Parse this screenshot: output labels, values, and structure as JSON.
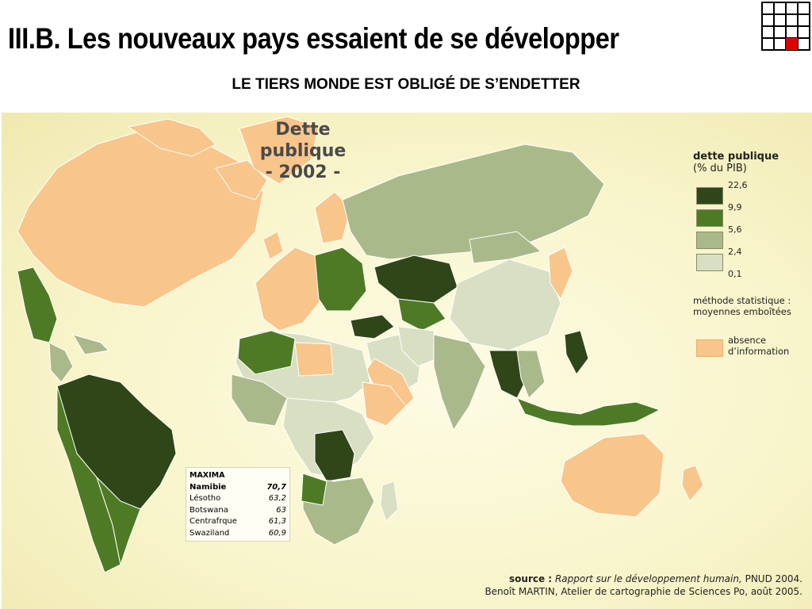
{
  "slide": {
    "title": "III.B. Les nouveaux pays essaient de se développer",
    "subtitle": "LE TIERS MONDE EST OBLIGÉ DE S’ENDETTER"
  },
  "map": {
    "title_line1": "Dette publique",
    "title_line2": "- 2002 -",
    "legend": {
      "title": "dette publique",
      "unit": "(% du PIB)",
      "classes": [
        {
          "value": "22,6",
          "color": "#2f4618"
        },
        {
          "value": "9,9",
          "color": "#4e7a25"
        },
        {
          "value": "5,6",
          "color": "#aab98a"
        },
        {
          "value": "2,4",
          "color": "#d9dfc3"
        },
        {
          "value": "0,1",
          "color": ""
        }
      ],
      "method_line1": "méthode statistique :",
      "method_line2": "moyennes emboîtées",
      "no_info_line1": "absence",
      "no_info_line2": "d’information",
      "no_info_color": "#f8c58b"
    },
    "maxima": {
      "title": "MAXIMA",
      "rows": [
        {
          "country": "Namibie",
          "value": "70,7"
        },
        {
          "country": "Lésotho",
          "value": "63,2"
        },
        {
          "country": "Botswana",
          "value": "63"
        },
        {
          "country": "Centrafrque",
          "value": "61,3"
        },
        {
          "country": "Swaziland",
          "value": "60,9"
        }
      ]
    },
    "source": {
      "label": "source :",
      "report": "Rapport sur le développement humain,",
      "org": " PNUD 2004.",
      "credit": "Benoît MARTIN, Atelier de cartographie de Sciences Po, août 2005."
    }
  }
}
